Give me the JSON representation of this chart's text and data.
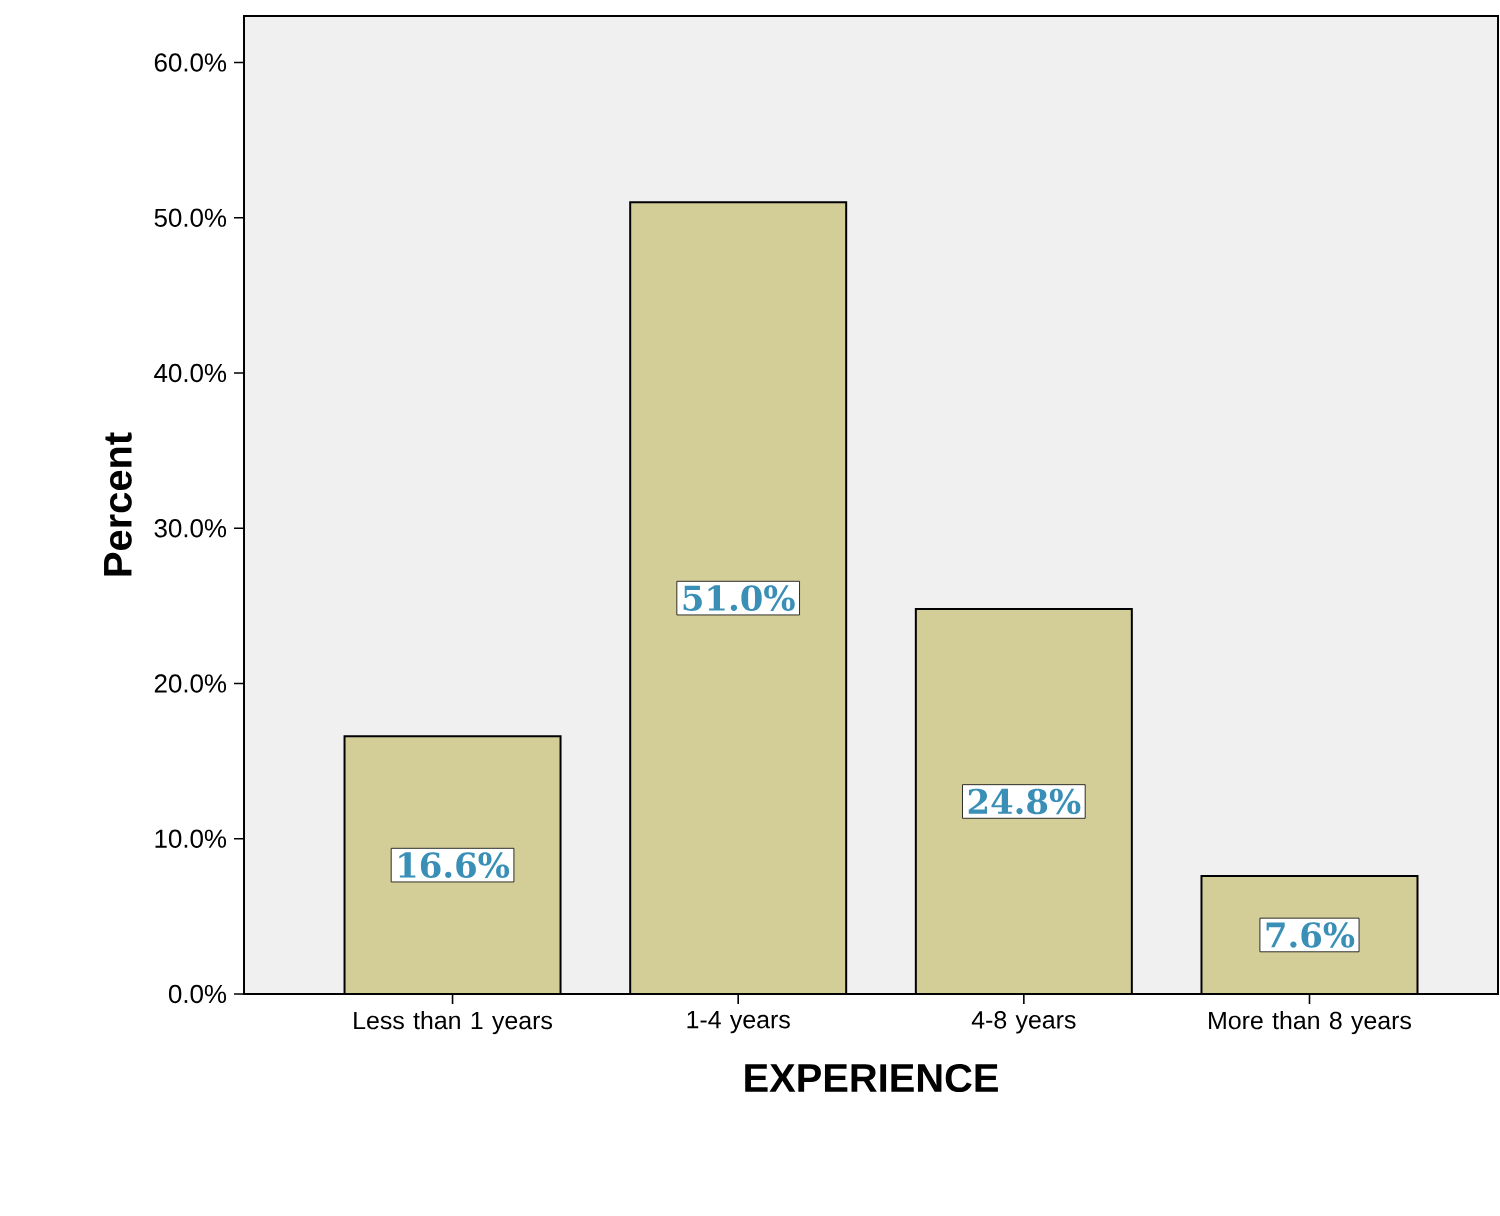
{
  "chart_data": {
    "type": "bar",
    "xlabel": "EXPERIENCE",
    "ylabel": "Percent",
    "categories": [
      "Less than 1 years",
      "1-4 years",
      "4-8 years",
      "More than 8 years"
    ],
    "values": [
      16.6,
      51.0,
      24.8,
      7.6
    ],
    "value_labels": [
      "16.6%",
      "51.0%",
      "24.8%",
      "7.6%"
    ],
    "color": "#d3cd98",
    "ylim": [
      0,
      63
    ],
    "yticks": [
      {
        "value": 0,
        "label": "0.0%"
      },
      {
        "value": 10,
        "label": "10.0%"
      },
      {
        "value": 20,
        "label": "20.0%"
      },
      {
        "value": 30,
        "label": "30.0%"
      },
      {
        "value": 40,
        "label": "40.0%"
      },
      {
        "value": 50,
        "label": "50.0%"
      },
      {
        "value": 60,
        "label": "60.0%"
      }
    ],
    "grid": false
  }
}
